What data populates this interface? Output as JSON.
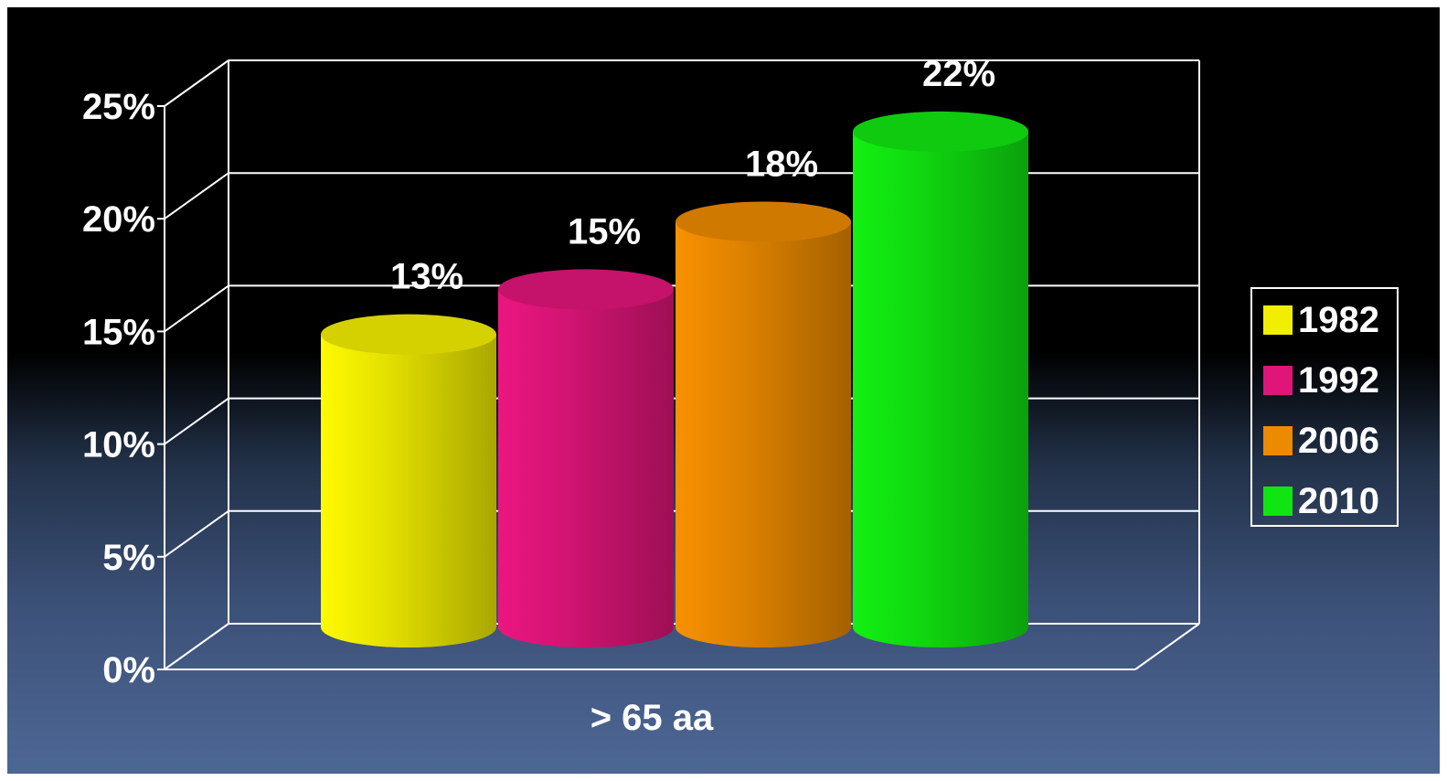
{
  "chart_data": {
    "type": "bar",
    "style": "3d-cylinder",
    "categories": [
      "> 65 aa"
    ],
    "series": [
      {
        "name": "1982",
        "values": [
          13
        ],
        "label": "13%",
        "color": "#f2ee00"
      },
      {
        "name": "1992",
        "values": [
          15
        ],
        "label": "15%",
        "color": "#e0157a"
      },
      {
        "name": "2006",
        "values": [
          18
        ],
        "label": "18%",
        "color": "#ec8a00"
      },
      {
        "name": "2010",
        "values": [
          22
        ],
        "label": "22%",
        "color": "#11e511"
      }
    ],
    "ylim": [
      0,
      25
    ],
    "yticks": [
      {
        "value": 0,
        "label": "0%"
      },
      {
        "value": 5,
        "label": "5%"
      },
      {
        "value": 10,
        "label": "10%"
      },
      {
        "value": 15,
        "label": "15%"
      },
      {
        "value": 20,
        "label": "20%"
      },
      {
        "value": 25,
        "label": "25%"
      }
    ],
    "grid": true,
    "legend": "right",
    "background": [
      "#000000",
      "#4d6795"
    ]
  }
}
